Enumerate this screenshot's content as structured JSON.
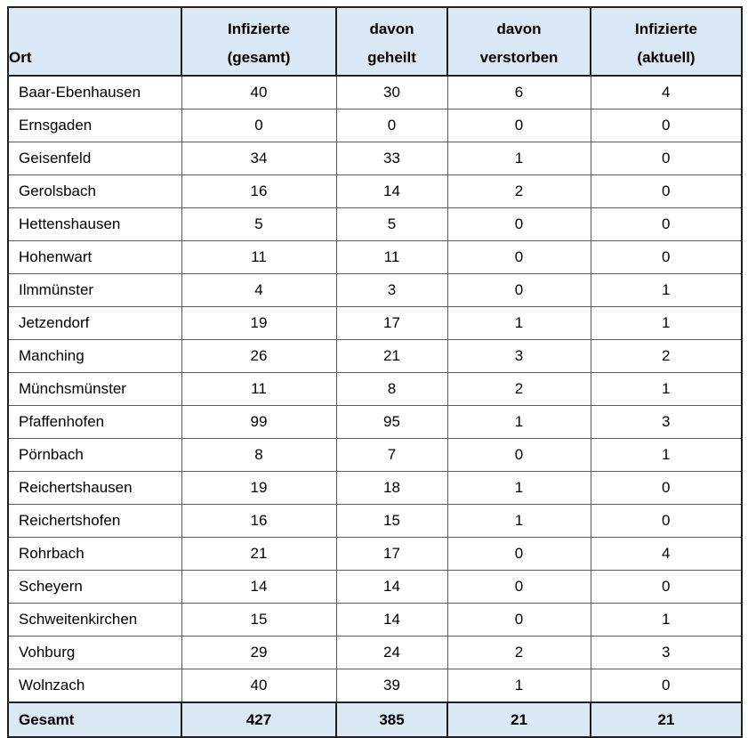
{
  "chart_data": {
    "type": "table",
    "title": "",
    "columns": [
      "Ort",
      "Infizierte (gesamt)",
      "davon geheilt",
      "davon verstorben",
      "Infizierte (aktuell)"
    ],
    "rows": [
      [
        "Baar-Ebenhausen",
        40,
        30,
        6,
        4
      ],
      [
        "Ernsgaden",
        0,
        0,
        0,
        0
      ],
      [
        "Geisenfeld",
        34,
        33,
        1,
        0
      ],
      [
        "Gerolsbach",
        16,
        14,
        2,
        0
      ],
      [
        "Hettenshausen",
        5,
        5,
        0,
        0
      ],
      [
        "Hohenwart",
        11,
        11,
        0,
        0
      ],
      [
        "Ilmmünster",
        4,
        3,
        0,
        1
      ],
      [
        "Jetzendorf",
        19,
        17,
        1,
        1
      ],
      [
        "Manching",
        26,
        21,
        3,
        2
      ],
      [
        "Münchsmünster",
        11,
        8,
        2,
        1
      ],
      [
        "Pfaffenhofen",
        99,
        95,
        1,
        3
      ],
      [
        "Pörnbach",
        8,
        7,
        0,
        1
      ],
      [
        "Reichertshausen",
        19,
        18,
        1,
        0
      ],
      [
        "Reichertshofen",
        16,
        15,
        1,
        0
      ],
      [
        "Rohrbach",
        21,
        17,
        0,
        4
      ],
      [
        "Scheyern",
        14,
        14,
        0,
        0
      ],
      [
        "Schweitenkirchen",
        15,
        14,
        0,
        1
      ],
      [
        "Vohburg",
        29,
        24,
        2,
        3
      ],
      [
        "Wolnzach",
        40,
        39,
        1,
        0
      ]
    ],
    "total": [
      "Gesamt",
      427,
      385,
      21,
      21
    ]
  },
  "header": {
    "ort": "Ort",
    "cols": [
      {
        "line1": "Infizierte",
        "line2": "(gesamt)"
      },
      {
        "line1": "davon",
        "line2": "geheilt"
      },
      {
        "line1": "davon",
        "line2": "verstorben"
      },
      {
        "line1": "Infizierte",
        "line2": "(aktuell)"
      }
    ]
  },
  "colors": {
    "header_bg": "#dbe8f5",
    "border_dark": "#1f1f1f",
    "border_mid": "#5a5a5a",
    "text": "#000000"
  }
}
